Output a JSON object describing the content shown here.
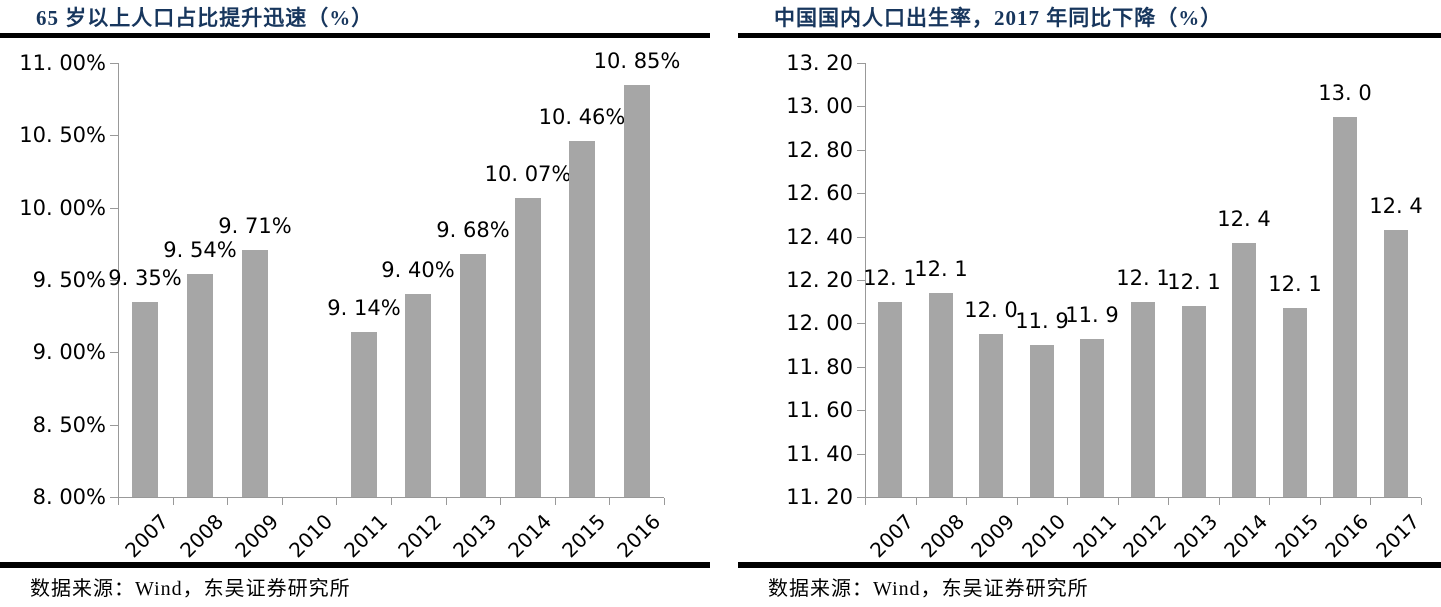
{
  "chart_data": [
    {
      "type": "bar",
      "title": "65 岁以上人口占比提升迅速（%）",
      "source": "数据来源：Wind，东吴证券研究所",
      "categories": [
        "2007",
        "2008",
        "2009",
        "2010",
        "2011",
        "2012",
        "2013",
        "2014",
        "2015",
        "2016"
      ],
      "values": [
        9.35,
        9.54,
        9.71,
        null,
        9.14,
        9.4,
        9.68,
        10.07,
        10.46,
        10.85
      ],
      "bar_labels": [
        "9. 35%",
        "9. 54%",
        "9. 71%",
        "",
        "9. 14%",
        "9. 40%",
        "9. 68%",
        "10. 07%",
        "10. 46%",
        "10. 85%"
      ],
      "ylim": [
        8.0,
        11.0
      ],
      "yticks": [
        {
          "value": 8.0,
          "label": "8. 00%"
        },
        {
          "value": 8.5,
          "label": "8. 50%"
        },
        {
          "value": 9.0,
          "label": "9. 00%"
        },
        {
          "value": 9.5,
          "label": "9. 50%"
        },
        {
          "value": 10.0,
          "label": "10. 00%"
        },
        {
          "value": 10.5,
          "label": "10. 50%"
        },
        {
          "value": 11.0,
          "label": "11. 00%"
        }
      ],
      "xlabel": "",
      "ylabel": "",
      "grid": false,
      "legend": null,
      "colors": {
        "bar": "#A6A6A6",
        "axis": "#999999",
        "title": "#17365D",
        "rule": "#000000",
        "text": "#000000"
      }
    },
    {
      "type": "bar",
      "title": "中国国内人口出生率，2017 年同比下降（%）",
      "source": "数据来源：Wind，东吴证券研究所",
      "categories": [
        "2007",
        "2008",
        "2009",
        "2010",
        "2011",
        "2012",
        "2013",
        "2014",
        "2015",
        "2016",
        "2017"
      ],
      "values": [
        12.1,
        12.14,
        11.95,
        11.9,
        11.93,
        12.1,
        12.08,
        12.37,
        12.07,
        12.95,
        12.43
      ],
      "bar_labels": [
        "12. 1",
        "12. 1",
        "12. 0",
        "11. 9",
        "11. 9",
        "12. 1",
        "12. 1",
        "12. 4",
        "12. 1",
        "13. 0",
        "12. 4"
      ],
      "ylim": [
        11.2,
        13.2
      ],
      "yticks": [
        {
          "value": 11.2,
          "label": "11. 20"
        },
        {
          "value": 11.4,
          "label": "11. 40"
        },
        {
          "value": 11.6,
          "label": "11. 60"
        },
        {
          "value": 11.8,
          "label": "11. 80"
        },
        {
          "value": 12.0,
          "label": "12. 00"
        },
        {
          "value": 12.2,
          "label": "12. 20"
        },
        {
          "value": 12.4,
          "label": "12. 40"
        },
        {
          "value": 12.6,
          "label": "12. 60"
        },
        {
          "value": 12.8,
          "label": "12. 80"
        },
        {
          "value": 13.0,
          "label": "13. 00"
        },
        {
          "value": 13.2,
          "label": "13. 20"
        }
      ],
      "xlabel": "",
      "ylabel": "",
      "grid": false,
      "legend": null,
      "colors": {
        "bar": "#A6A6A6",
        "axis": "#999999",
        "title": "#17365D",
        "rule": "#000000",
        "text": "#000000"
      }
    }
  ]
}
